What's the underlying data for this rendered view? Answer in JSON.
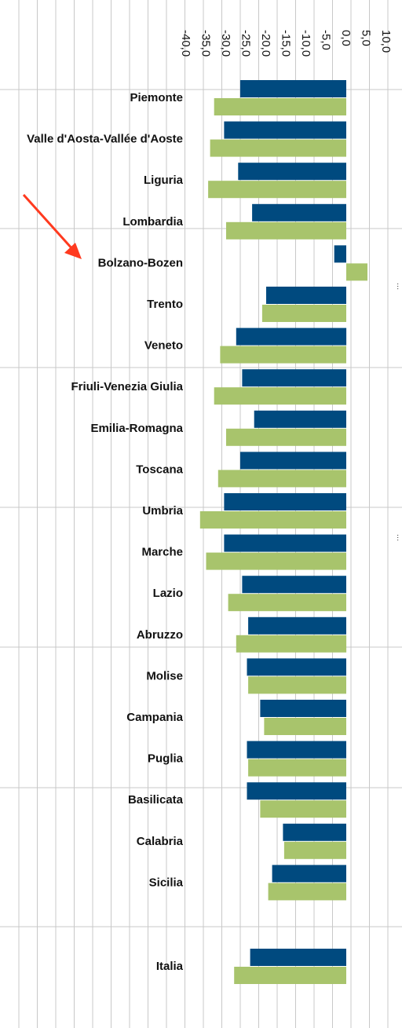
{
  "chart_data": {
    "type": "bar",
    "orientation": "horizontal",
    "title": "",
    "xlabel": "",
    "ylabel": "",
    "xlim": [
      -40,
      10
    ],
    "ticks": [
      "-40,0",
      "-35,0",
      "-30,0",
      "-25,0",
      "-20,0",
      "-15,0",
      "-10,0",
      "-5,0",
      "0,0",
      "5,0",
      "10,0"
    ],
    "grid": true,
    "categories": [
      "Piemonte",
      "Valle d'Aosta-Vallée d'Aoste",
      "Liguria",
      "Lombardia",
      "Bolzano-Bozen",
      "Trento",
      "Veneto",
      "Friuli-Venezia Giulia",
      "Emilia-Romagna",
      "Toscana",
      "Umbria",
      "Marche",
      "Lazio",
      "Abruzzo",
      "Molise",
      "Campania",
      "Puglia",
      "Basilicata",
      "Calabria",
      "Sicilia",
      "Italia"
    ],
    "series": [
      {
        "values": [
          -26.5,
          -30.5,
          -27.0,
          -23.5,
          -3.0,
          -20.0,
          -27.5,
          -26.0,
          -23.0,
          -26.5,
          -30.5,
          -30.5,
          -26.0,
          -24.5,
          -24.8,
          -21.5,
          -24.8,
          -24.8,
          -15.8,
          -18.5,
          -24.0
        ]
      },
      {
        "values": [
          -33.0,
          -34.0,
          -34.5,
          -30.0,
          5.3,
          -21.0,
          -31.5,
          -33.0,
          -30.0,
          -32.0,
          -36.5,
          -35.0,
          -29.5,
          -27.5,
          -24.5,
          -20.5,
          -24.5,
          -21.5,
          -15.5,
          -19.5,
          -28.0
        ]
      }
    ],
    "colors": {
      "series_1": "#004a7f",
      "series_2": "#a8c46c",
      "grid": "#c8c8c8"
    },
    "annotations": [
      {
        "type": "arrow",
        "color": "#ff3a1f",
        "points_to": "Bolzano-Bozen"
      }
    ]
  },
  "side_text": [
    "...",
    "..."
  ]
}
